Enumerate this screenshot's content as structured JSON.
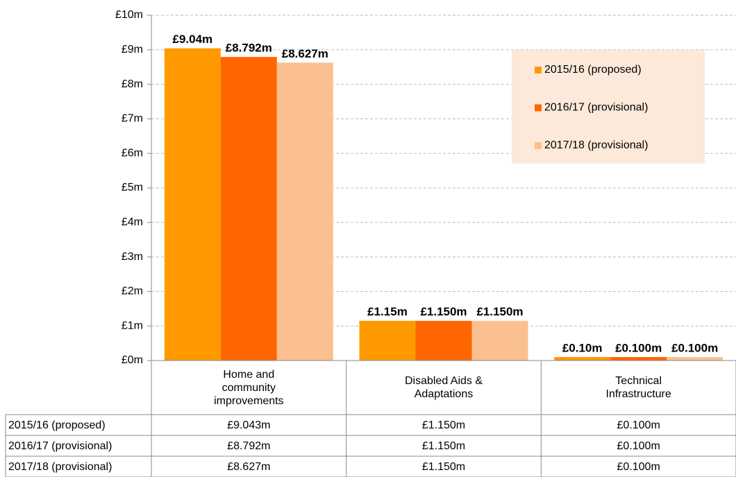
{
  "chart_data": {
    "type": "bar",
    "categories": [
      "Home and community improvements",
      "Disabled Aids & Adaptations",
      "Technical Infrastructure"
    ],
    "series": [
      {
        "name": "2015/16 (proposed)",
        "color": "#ff9900",
        "values": [
          9.043,
          1.15,
          0.1
        ],
        "value_labels": [
          "£9.04m",
          "£1.15m",
          "£0.10m"
        ],
        "table_labels": [
          "£9.043m",
          "£1.150m",
          "£0.100m"
        ]
      },
      {
        "name": "2016/17 (provisional)",
        "color": "#ff6600",
        "values": [
          8.792,
          1.15,
          0.1
        ],
        "value_labels": [
          "£8.792m",
          "£1.150m",
          "£0.100m"
        ],
        "table_labels": [
          "£8.792m",
          "£1.150m",
          "£0.100m"
        ]
      },
      {
        "name": "2017/18 (provisional)",
        "color": "#fac090",
        "values": [
          8.627,
          1.15,
          0.1
        ],
        "value_labels": [
          "£8.627m",
          "£1.150m",
          "£0.100m"
        ],
        "table_labels": [
          "£8.627m",
          "£1.150m",
          "£0.100m"
        ]
      }
    ],
    "ylim": [
      0,
      10
    ],
    "yticks": [
      {
        "value": 0,
        "label": "£0m"
      },
      {
        "value": 1,
        "label": "£1m"
      },
      {
        "value": 2,
        "label": "£2m"
      },
      {
        "value": 3,
        "label": "£3m"
      },
      {
        "value": 4,
        "label": "£4m"
      },
      {
        "value": 5,
        "label": "£5m"
      },
      {
        "value": 6,
        "label": "£6m"
      },
      {
        "value": 7,
        "label": "£7m"
      },
      {
        "value": 8,
        "label": "£8m"
      },
      {
        "value": 9,
        "label": "£9m"
      },
      {
        "value": 10,
        "label": "£10m"
      }
    ],
    "grid": true,
    "legend": "upper right",
    "legend_background": "#fde9d9"
  }
}
